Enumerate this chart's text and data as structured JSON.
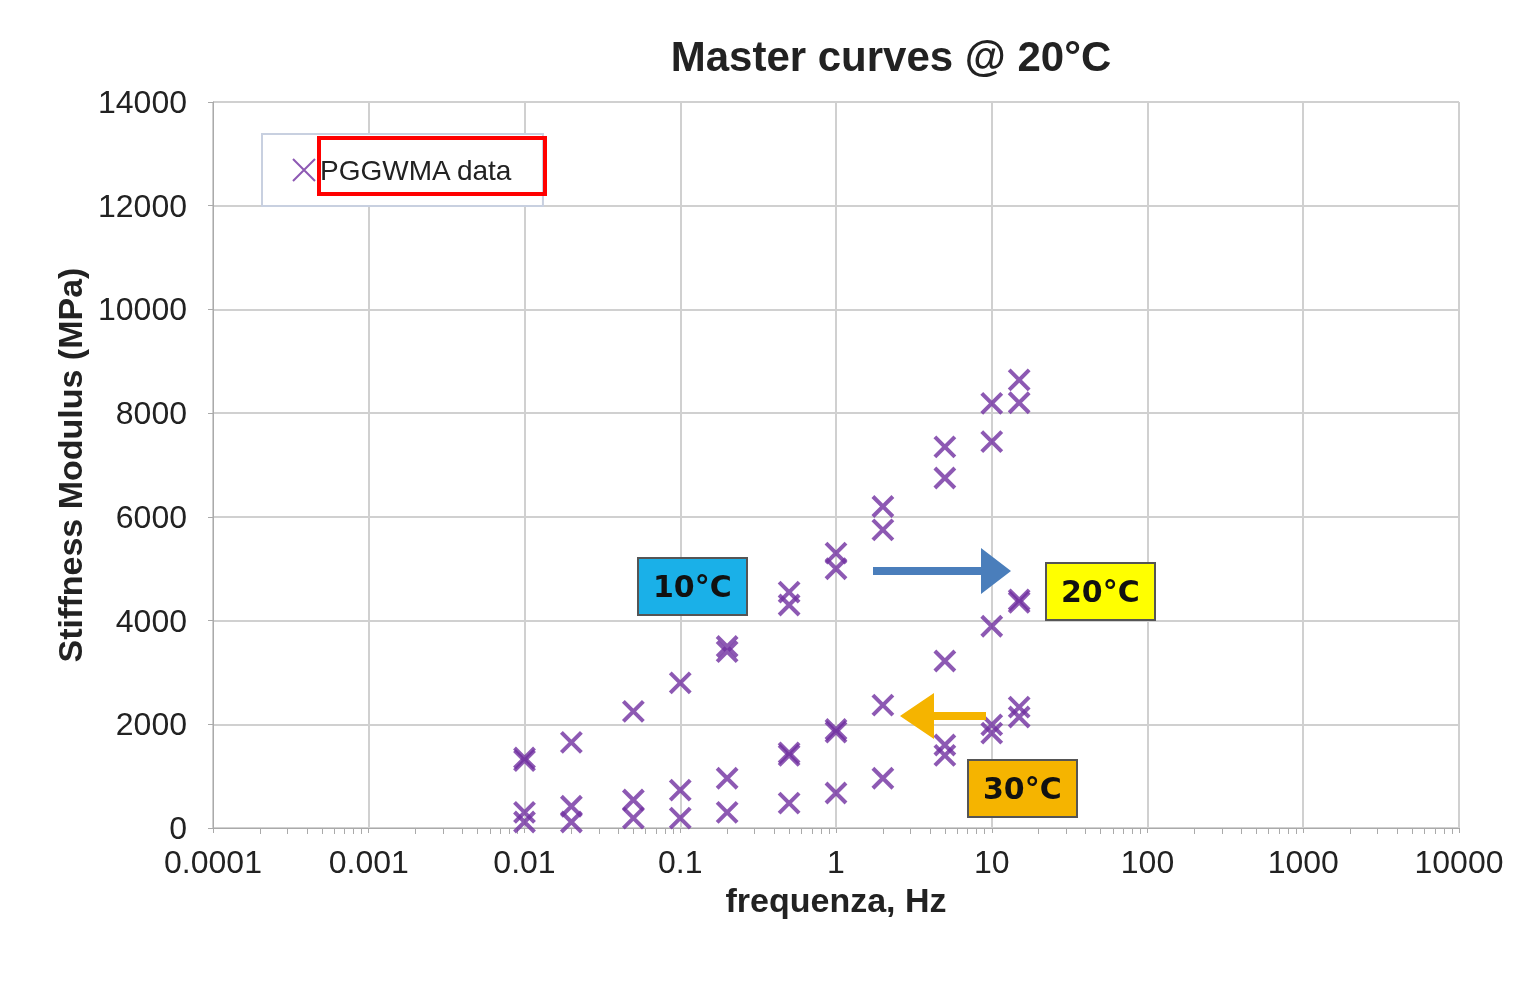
{
  "chart_data": {
    "type": "scatter",
    "title": "Master curves @ 20°C",
    "xlabel": "frequenza, Hz",
    "ylabel": "Stiffness Modulus (MPa)",
    "log": "x",
    "xlim": [
      0.0001,
      10000
    ],
    "xticks": [
      0.0001,
      0.001,
      0.01,
      0.1,
      1,
      10,
      100,
      1000,
      10000
    ],
    "ylim": [
      0,
      14000
    ],
    "yticks": [
      0,
      2000,
      4000,
      6000,
      8000,
      10000,
      12000,
      14000
    ],
    "grid": true,
    "legend": "top left",
    "marker": "cross",
    "annotations": [
      "10°C",
      "20°C",
      "30°C"
    ],
    "series": [
      {
        "name": "PGGWMA data",
        "color": "#7030a0",
        "x": [
          0.01,
          0.01,
          0.01,
          0.01,
          0.02,
          0.02,
          0.02,
          0.05,
          0.05,
          0.05,
          0.1,
          0.1,
          0.1,
          0.2,
          0.2,
          0.2,
          0.2,
          0.5,
          0.5,
          0.5,
          0.5,
          0.5,
          1,
          1,
          1,
          1,
          1,
          2,
          2,
          2,
          2,
          5,
          5,
          5,
          5,
          5,
          10,
          10,
          10,
          10,
          10,
          15,
          15,
          15,
          15,
          15,
          15
        ],
        "values": [
          1350,
          1300,
          300,
          115,
          1650,
          420,
          115,
          2250,
          540,
          190,
          2800,
          730,
          190,
          3500,
          3400,
          960,
          300,
          4550,
          4300,
          1450,
          1400,
          480,
          5300,
          5000,
          1900,
          1850,
          675,
          6200,
          5750,
          2370,
          960,
          7350,
          6750,
          3220,
          1600,
          1400,
          8190,
          7450,
          3890,
          1990,
          1830,
          8640,
          8200,
          4400,
          4350,
          2330,
          2140
        ]
      }
    ]
  }
}
